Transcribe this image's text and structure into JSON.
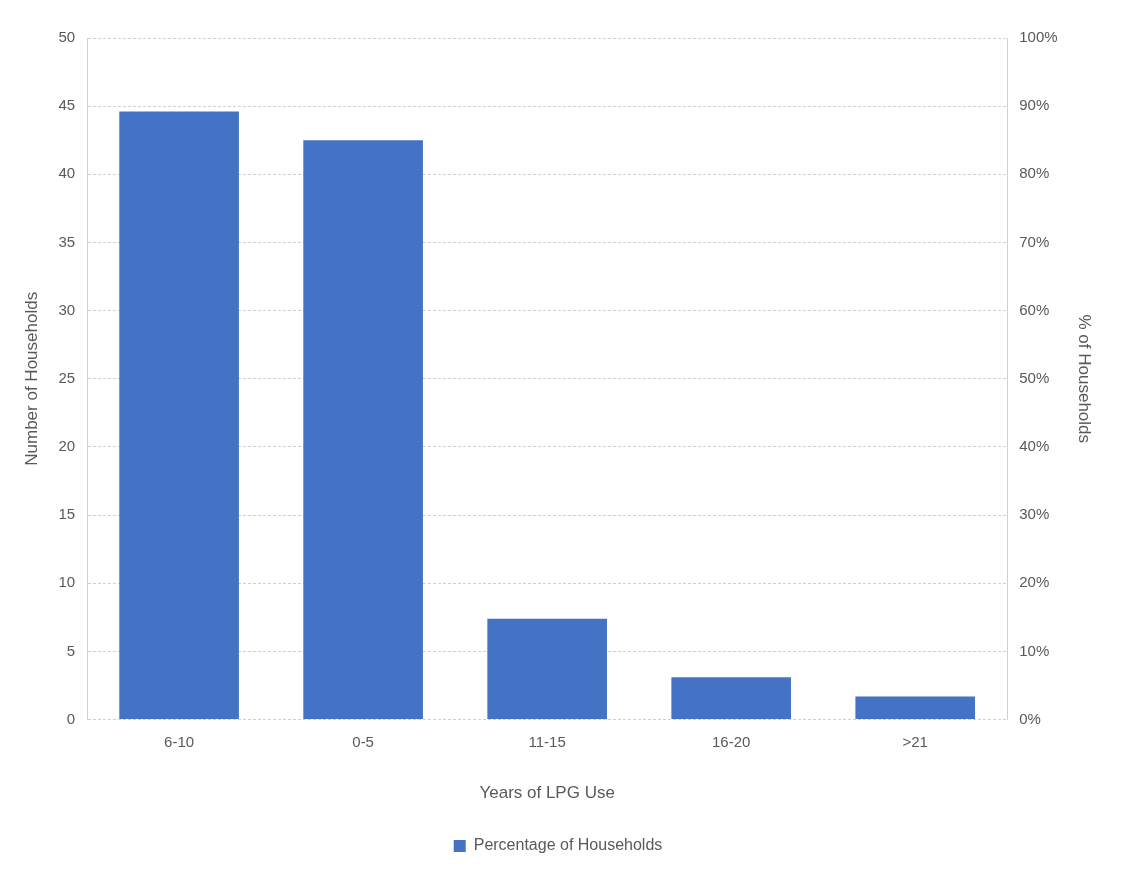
{
  "chart_data": {
    "type": "bar",
    "xlabel": "Years of LPG Use",
    "ylabel": "Number of Households",
    "y2label": "% of Households",
    "categories": [
      "6-10",
      "0-5",
      "11-15",
      "16-20",
      ">21"
    ],
    "series": [
      {
        "name": "Percentage of Households",
        "color": "#4472c4",
        "values": [
          44.6,
          42.5,
          7.4,
          3.1,
          1.7
        ]
      }
    ],
    "ylim": [
      0,
      50
    ],
    "yticks": [
      0,
      5,
      10,
      15,
      20,
      25,
      30,
      35,
      40,
      45,
      50
    ],
    "y2lim": [
      0,
      100
    ],
    "y2ticks": [
      {
        "value": 0,
        "label": "0%"
      },
      {
        "value": 10,
        "label": "10%"
      },
      {
        "value": 20,
        "label": "20%"
      },
      {
        "value": 30,
        "label": "30%"
      },
      {
        "value": 40,
        "label": "40%"
      },
      {
        "value": 50,
        "label": "50%"
      },
      {
        "value": 60,
        "label": "60%"
      },
      {
        "value": 70,
        "label": "70%"
      },
      {
        "value": 80,
        "label": "80%"
      },
      {
        "value": 90,
        "label": "90%"
      },
      {
        "value": 100,
        "label": "100%"
      }
    ],
    "grid": "y",
    "legend": "bottom"
  }
}
